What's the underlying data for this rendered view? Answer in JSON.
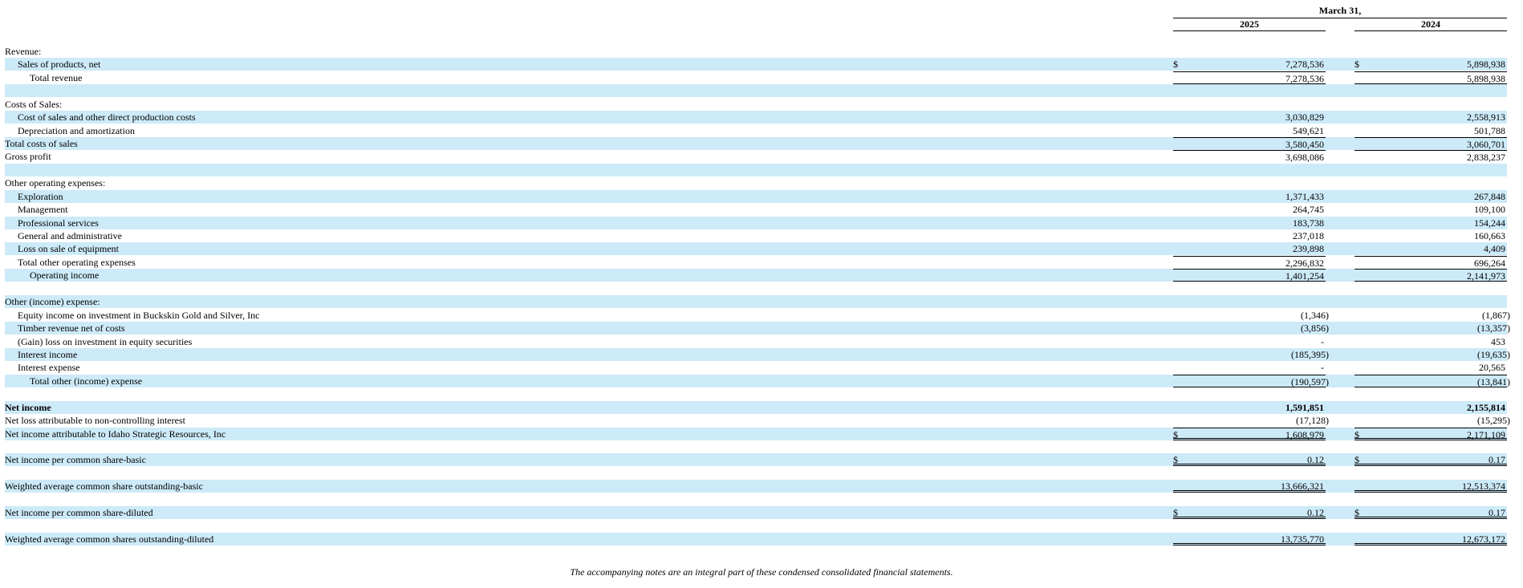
{
  "header": {
    "period": "March 31,",
    "col_2025": "2025",
    "col_2024": "2024"
  },
  "rows": [
    {
      "label": "Revenue:",
      "indent": 0,
      "shade": false,
      "v25": "",
      "v24": ""
    },
    {
      "label": "Sales of products, net",
      "indent": 1,
      "shade": true,
      "cur": true,
      "v25": "7,278,536",
      "v24": "5,898,938"
    },
    {
      "label": "Total revenue",
      "indent": 2,
      "shade": false,
      "v25": "7,278,536",
      "v24": "5,898,938",
      "top": true,
      "bottom": "single"
    },
    {
      "label": "",
      "indent": 0,
      "shade": true,
      "v25": "",
      "v24": ""
    },
    {
      "label": "Costs of Sales:",
      "indent": 0,
      "shade": false,
      "v25": "",
      "v24": ""
    },
    {
      "label": "Cost of sales and other direct production costs",
      "indent": 1,
      "shade": true,
      "v25": "3,030,829",
      "v24": "2,558,913"
    },
    {
      "label": "Depreciation and amortization",
      "indent": 1,
      "shade": false,
      "v25": "549,621",
      "v24": "501,788"
    },
    {
      "label": "Total costs of sales",
      "indent": 0,
      "shade": true,
      "v25": "3,580,450",
      "v24": "3,060,701",
      "top": true
    },
    {
      "label": "Gross profit",
      "indent": 0,
      "shade": false,
      "v25": "3,698,086",
      "v24": "2,838,237",
      "top": true
    },
    {
      "label": "",
      "indent": 0,
      "shade": true,
      "v25": "",
      "v24": ""
    },
    {
      "label": "Other operating expenses:",
      "indent": 0,
      "shade": false,
      "v25": "",
      "v24": ""
    },
    {
      "label": "Exploration",
      "indent": 1,
      "shade": true,
      "v25": "1,371,433",
      "v24": "267,848"
    },
    {
      "label": "Management",
      "indent": 1,
      "shade": false,
      "v25": "264,745",
      "v24": "109,100"
    },
    {
      "label": "Professional services",
      "indent": 1,
      "shade": true,
      "v25": "183,738",
      "v24": "154,244"
    },
    {
      "label": "General and administrative",
      "indent": 1,
      "shade": false,
      "v25": "237,018",
      "v24": "160,663"
    },
    {
      "label": "Loss on sale of equipment",
      "indent": 1,
      "shade": true,
      "v25": "239,898",
      "v24": "4,409"
    },
    {
      "label": "Total other operating expenses",
      "indent": 1,
      "shade": false,
      "v25": "2,296,832",
      "v24": "696,264",
      "top": true
    },
    {
      "label": "Operating income",
      "indent": 2,
      "shade": true,
      "v25": "1,401,254",
      "v24": "2,141,973",
      "top": true,
      "bottom": "single"
    },
    {
      "label": "",
      "indent": 0,
      "shade": false,
      "v25": "",
      "v24": ""
    },
    {
      "label": "Other (income) expense:",
      "indent": 0,
      "shade": true,
      "v25": "",
      "v24": ""
    },
    {
      "label": "Equity income on investment in Buckskin Gold and Silver, Inc",
      "indent": 1,
      "shade": false,
      "v25": "(1,346)",
      "v24": "(1,867)"
    },
    {
      "label": "Timber revenue net of costs",
      "indent": 1,
      "shade": true,
      "v25": "(3,856)",
      "v24": "(13,357)"
    },
    {
      "label": "(Gain) loss on investment in equity securities",
      "indent": 1,
      "shade": false,
      "v25": "-",
      "v24": "453"
    },
    {
      "label": "Interest income",
      "indent": 1,
      "shade": true,
      "v25": "(185,395)",
      "v24": "(19,635)"
    },
    {
      "label": "Interest expense",
      "indent": 1,
      "shade": false,
      "v25": "-",
      "v24": "20,565"
    },
    {
      "label": "Total other (income) expense",
      "indent": 2,
      "shade": true,
      "v25": "(190,597)",
      "v24": "(13,841)",
      "top": true,
      "bottom": "single"
    },
    {
      "label": "",
      "indent": 0,
      "shade": false,
      "v25": "",
      "v24": ""
    },
    {
      "label": "Net income",
      "indent": 0,
      "shade": true,
      "bold": true,
      "v25": "1,591,851",
      "v24": "2,155,814"
    },
    {
      "label": "Net loss attributable to non-controlling interest",
      "indent": 0,
      "shade": false,
      "v25": "(17,128)",
      "v24": "(15,295)"
    },
    {
      "label": "Net income attributable to Idaho Strategic Resources, Inc",
      "indent": 0,
      "shade": true,
      "cur": true,
      "v25": "1,608,979",
      "v24": "2,171,109",
      "top": true,
      "bottom": "double"
    },
    {
      "label": "",
      "indent": 0,
      "shade": false,
      "v25": "",
      "v24": ""
    },
    {
      "label": "Net income per common share-basic",
      "indent": 0,
      "shade": true,
      "cur": true,
      "v25": "0.12",
      "v24": "0.17",
      "bottom": "double"
    },
    {
      "label": "",
      "indent": 0,
      "shade": false,
      "v25": "",
      "v24": ""
    },
    {
      "label": "Weighted average common share outstanding-basic",
      "indent": 0,
      "shade": true,
      "v25": "13,666,321",
      "v24": "12,513,374",
      "bottom": "double"
    },
    {
      "label": "",
      "indent": 0,
      "shade": false,
      "v25": "",
      "v24": ""
    },
    {
      "label": "Net income per common share-diluted",
      "indent": 0,
      "shade": true,
      "cur": true,
      "v25": "0.12",
      "v24": "0.17",
      "bottom": "double"
    },
    {
      "label": "",
      "indent": 0,
      "shade": false,
      "v25": "",
      "v24": ""
    },
    {
      "label": "Weighted average common shares outstanding-diluted",
      "indent": 0,
      "shade": true,
      "v25": "13,735,770",
      "v24": "12,673,172",
      "bottom": "double"
    }
  ],
  "currency_symbol": "$",
  "footnote": "The accompanying notes are an integral part of these condensed consolidated financial statements."
}
